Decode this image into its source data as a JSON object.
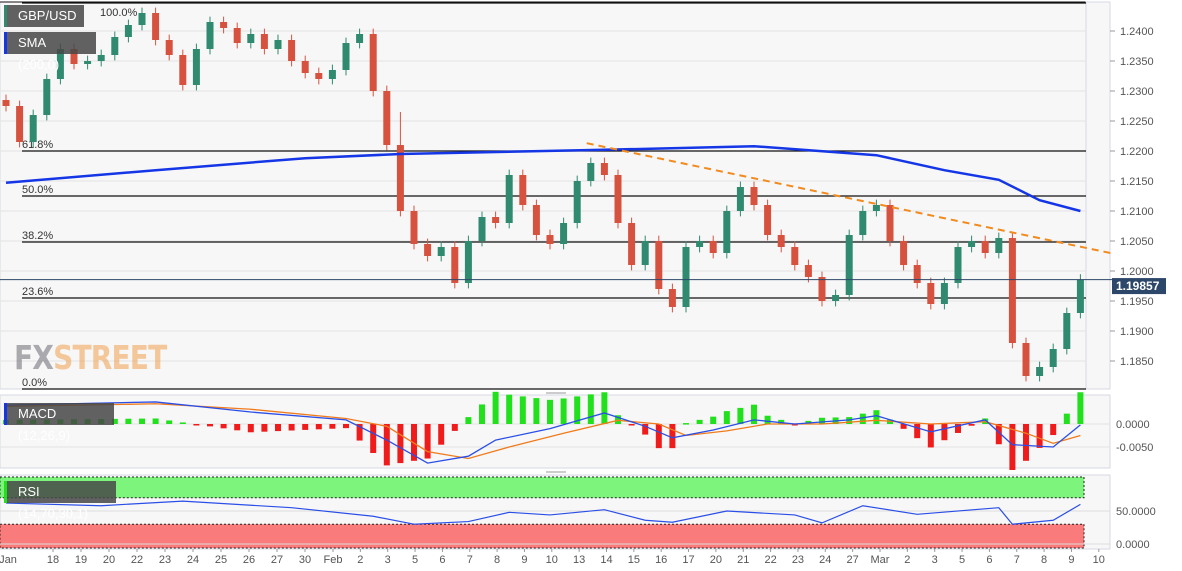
{
  "chart_data": {
    "type": "candlestick",
    "symbol": "GBP/USD",
    "indicator_label": "SMA (200,0)",
    "current_price": "1.19857",
    "current_price_value": 1.19857,
    "ylim": [
      1.18,
      1.245
    ],
    "y_ticks": [
      "1.2400",
      "1.2350",
      "1.2300",
      "1.2250",
      "1.2200",
      "1.2150",
      "1.2100",
      "1.2050",
      "1.2000",
      "1.1950",
      "1.1900",
      "1.1850"
    ],
    "y_tick_values": [
      1.24,
      1.235,
      1.23,
      1.225,
      1.22,
      1.215,
      1.21,
      1.205,
      1.2,
      1.195,
      1.19,
      1.185
    ],
    "x_labels": [
      "Jan",
      "18",
      "19",
      "20",
      "22",
      "23",
      "24",
      "25",
      "26",
      "27",
      "30",
      "Feb",
      "2",
      "3",
      "5",
      "6",
      "7",
      "8",
      "9",
      "10",
      "13",
      "14",
      "15",
      "16",
      "17",
      "20",
      "21",
      "22",
      "23",
      "24",
      "27",
      "Mar",
      "2",
      "3",
      "5",
      "6",
      "7",
      "8",
      "9",
      "10"
    ],
    "closes": [
      1.2275,
      1.2215,
      1.226,
      1.232,
      1.237,
      1.2345,
      1.235,
      1.236,
      1.239,
      1.241,
      1.243,
      1.2385,
      1.236,
      1.231,
      1.237,
      1.2415,
      1.2405,
      1.238,
      1.2395,
      1.237,
      1.2385,
      1.235,
      1.233,
      1.232,
      1.2335,
      1.238,
      1.2395,
      1.23,
      1.221,
      1.21,
      1.2045,
      1.2025,
      1.204,
      1.198,
      1.205,
      1.209,
      1.208,
      1.216,
      1.211,
      1.206,
      1.2045,
      1.208,
      1.215,
      1.218,
      1.216,
      1.208,
      1.201,
      1.205,
      1.197,
      1.194,
      1.204,
      1.205,
      1.203,
      1.21,
      1.214,
      1.211,
      1.206,
      1.204,
      1.201,
      1.199,
      1.195,
      1.196,
      1.206,
      1.21,
      1.211,
      1.205,
      1.201,
      1.198,
      1.1945,
      1.198,
      1.204,
      1.205,
      1.203,
      1.2055,
      1.188,
      1.1825,
      1.184,
      1.187,
      1.193,
      1.19857
    ],
    "sma_200": [
      [
        0,
        1.2147
      ],
      [
        11,
        1.2168
      ],
      [
        22,
        1.2188
      ],
      [
        29,
        1.2195
      ],
      [
        44,
        1.2202
      ],
      [
        55,
        1.2208
      ],
      [
        64,
        1.2193
      ],
      [
        69,
        1.2168
      ],
      [
        73,
        1.2152
      ],
      [
        76,
        1.2118
      ],
      [
        79,
        1.21
      ]
    ],
    "trendline": [
      [
        42.7,
        1.2213
      ],
      [
        81.2,
        1.203
      ]
    ],
    "fibonacci": [
      {
        "label": "100.0%",
        "value": 1.24467
      },
      {
        "label": "61.8%",
        "value": 1.22
      },
      {
        "label": "50.0%",
        "value": 1.2125
      },
      {
        "label": "38.2%",
        "value": 1.20483
      },
      {
        "label": "23.6%",
        "value": 1.1955
      },
      {
        "label": "0.0%",
        "value": 1.18033
      }
    ],
    "macd": {
      "label": "MACD (12,26,9)",
      "y_ticks": [
        "0.0000",
        "-0.0050"
      ],
      "y_tick_values": [
        0,
        -0.005
      ],
      "macd_line": [
        [
          0,
          0.0041
        ],
        [
          11,
          0.0048
        ],
        [
          18,
          0.0026
        ],
        [
          25,
          0.0009
        ],
        [
          28,
          -0.0035
        ],
        [
          31,
          -0.0085
        ],
        [
          34,
          -0.007
        ],
        [
          36,
          -0.0035
        ],
        [
          40,
          -0.001
        ],
        [
          44,
          0.0024
        ],
        [
          47,
          -0.0005
        ],
        [
          49,
          -0.003
        ],
        [
          52,
          -0.0013
        ],
        [
          55,
          0.0009
        ],
        [
          58,
          0
        ],
        [
          62,
          0.0009
        ],
        [
          64,
          0.0018
        ],
        [
          68,
          -0.0017
        ],
        [
          72,
          0.0009
        ],
        [
          74,
          -0.0045
        ],
        [
          77,
          -0.005
        ],
        [
          79,
          -0.0002
        ]
      ],
      "signal_line": [
        [
          0,
          0.0038
        ],
        [
          11,
          0.0044
        ],
        [
          18,
          0.0032
        ],
        [
          25,
          0.0012
        ],
        [
          28,
          -0.0005
        ],
        [
          31,
          -0.006
        ],
        [
          34,
          -0.0075
        ],
        [
          37,
          -0.005
        ],
        [
          41,
          -0.002
        ],
        [
          45,
          0.0008
        ],
        [
          48,
          0
        ],
        [
          50,
          -0.0025
        ],
        [
          53,
          -0.0015
        ],
        [
          56,
          0
        ],
        [
          60,
          0
        ],
        [
          64,
          0.0008
        ],
        [
          68,
          0
        ],
        [
          72,
          0.0005
        ],
        [
          75,
          -0.002
        ],
        [
          77,
          -0.0042
        ],
        [
          79,
          -0.0025
        ]
      ]
    },
    "rsi": {
      "label": "RSI (14,70,30,1)",
      "levels": [
        70,
        30
      ],
      "y_ticks": [
        "50.0000",
        "0.0000"
      ],
      "y_tick_values": [
        50,
        0
      ],
      "values": [
        [
          0,
          62
        ],
        [
          7,
          58
        ],
        [
          13,
          65
        ],
        [
          21,
          55
        ],
        [
          27,
          42
        ],
        [
          30,
          30
        ],
        [
          34,
          34
        ],
        [
          37,
          48
        ],
        [
          40,
          44
        ],
        [
          44,
          52
        ],
        [
          47,
          36
        ],
        [
          49,
          33
        ],
        [
          53,
          50
        ],
        [
          58,
          44
        ],
        [
          60,
          32
        ],
        [
          63,
          58
        ],
        [
          67,
          45
        ],
        [
          73,
          55
        ],
        [
          74,
          30
        ],
        [
          77,
          36
        ],
        [
          79,
          60
        ]
      ]
    }
  },
  "watermark": {
    "part1": "FX",
    "part2": "STREET"
  },
  "colors": {
    "up": "#2f8a6f",
    "down": "#d6523f",
    "sma": "#1436e6",
    "trend": "#f28a1e",
    "macd": "#2a4ee8",
    "signal": "#f07b1c",
    "hist_up": "#21e01c",
    "hist_down": "#f01c1c",
    "rsi": "#2a4ee8",
    "rsi_high": "#7df57d",
    "rsi_low": "#fa7b7b",
    "price_box": "#2c4769"
  }
}
